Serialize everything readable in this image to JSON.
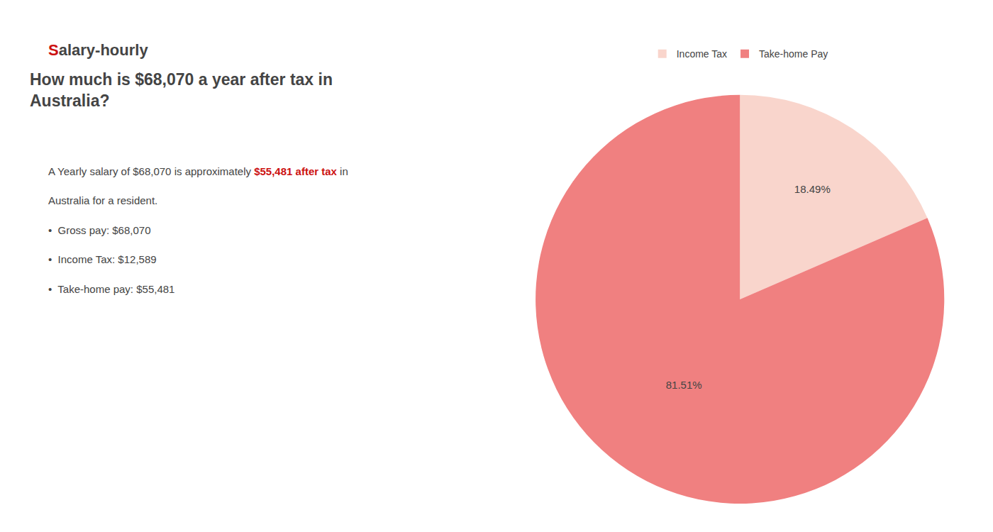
{
  "chart_data": {
    "type": "pie",
    "title": "How much is $68,070 a year after tax in\nAustralia?",
    "categories": [
      "Income Tax",
      "Take-home Pay"
    ],
    "values": [
      18.49,
      81.51
    ],
    "value_labels": [
      "18.49%",
      "81.51%"
    ],
    "colors": [
      "#f9d5cc",
      "#f08080"
    ],
    "data_labels": true,
    "legend": "top",
    "annotations": [
      [
        {
          "text": "S",
          "color": "#cc1111"
        },
        {
          "text": "alary-hourly"
        }
      ],
      [
        {
          "text": "A Yearly salary of $68,070 is approximately "
        },
        {
          "text": "$55,481 after tax",
          "color": "#cc1111"
        },
        {
          "text": " in"
        }
      ],
      [
        {
          "text": "Australia for a resident."
        }
      ],
      [
        {
          "text": "•  Gross pay: $68,070"
        }
      ],
      [
        {
          "text": "•  Income Tax: $12,589"
        }
      ],
      [
        {
          "text": "•  Take-home pay: $55,481"
        }
      ]
    ]
  }
}
